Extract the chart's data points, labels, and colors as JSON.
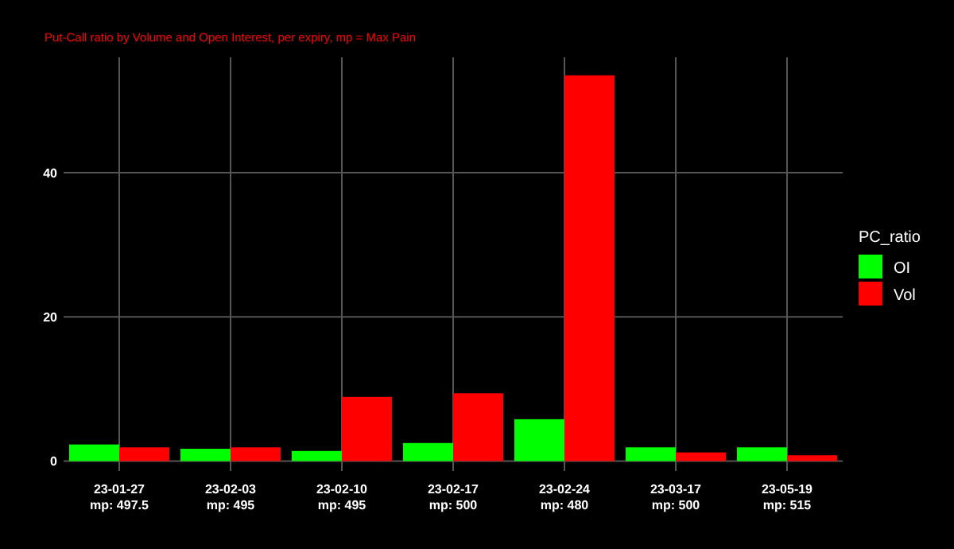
{
  "chart_data": {
    "type": "bar",
    "subtitle": "Put-Call ratio by Volume and Open Interest, per expiry, mp = Max Pain",
    "categories": [
      "23-01-27\nmp: 497.5",
      "23-02-03\nmp: 495",
      "23-02-10\nmp: 495",
      "23-02-17\nmp: 500",
      "23-02-24\nmp: 480",
      "23-03-17\nmp: 500",
      "23-05-19\nmp: 515"
    ],
    "series": [
      {
        "name": "OI",
        "color": "#00ff00",
        "values": [
          2.3,
          1.7,
          1.4,
          2.5,
          5.8,
          1.9,
          1.9
        ]
      },
      {
        "name": "Vol",
        "color": "#ff0000",
        "values": [
          1.9,
          1.9,
          8.9,
          9.4,
          53.5,
          1.2,
          0.8
        ]
      }
    ],
    "legend_title": "PC_ratio",
    "legend": "right",
    "ylim": [
      -0.5,
      56
    ],
    "yticks": [
      0,
      20,
      40
    ],
    "grid": true
  }
}
